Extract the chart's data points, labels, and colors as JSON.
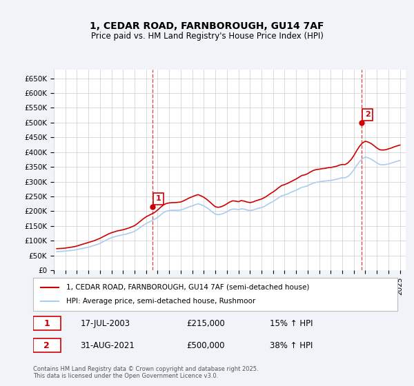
{
  "title_line1": "1, CEDAR ROAD, FARNBOROUGH, GU14 7AF",
  "title_line2": "Price paid vs. HM Land Registry's House Price Index (HPI)",
  "ylabel_ticks": [
    "£0",
    "£50K",
    "£100K",
    "£150K",
    "£200K",
    "£250K",
    "£300K",
    "£350K",
    "£400K",
    "£450K",
    "£500K",
    "£550K",
    "£600K",
    "£650K"
  ],
  "ytick_values": [
    0,
    50000,
    100000,
    150000,
    200000,
    250000,
    300000,
    350000,
    400000,
    450000,
    500000,
    550000,
    600000,
    650000
  ],
  "ylim": [
    0,
    680000
  ],
  "xlim_start": 1995.0,
  "xlim_end": 2025.5,
  "sale1_date": "17-JUL-2003",
  "sale1_price": 215000,
  "sale1_label": "15% ↑ HPI",
  "sale1_x": 2003.54,
  "sale2_date": "31-AUG-2021",
  "sale2_price": 500000,
  "sale2_label": "38% ↑ HPI",
  "sale2_x": 2021.66,
  "line_color_red": "#cc0000",
  "line_color_blue": "#aaccee",
  "vline_color": "#cc0000",
  "annotation_box_color": "#cc0000",
  "background_color": "#f0f4f8",
  "plot_bg_color": "#ffffff",
  "grid_color": "#cccccc",
  "legend_label_red": "1, CEDAR ROAD, FARNBOROUGH, GU14 7AF (semi-detached house)",
  "legend_label_blue": "HPI: Average price, semi-detached house, Rushmoor",
  "footnote": "Contains HM Land Registry data © Crown copyright and database right 2025.\nThis data is licensed under the Open Government Licence v3.0.",
  "hpi_data": {
    "years": [
      1995.25,
      1995.5,
      1995.75,
      1996.0,
      1996.25,
      1996.5,
      1996.75,
      1997.0,
      1997.25,
      1997.5,
      1997.75,
      1998.0,
      1998.25,
      1998.5,
      1998.75,
      1999.0,
      1999.25,
      1999.5,
      1999.75,
      2000.0,
      2000.25,
      2000.5,
      2000.75,
      2001.0,
      2001.25,
      2001.5,
      2001.75,
      2002.0,
      2002.25,
      2002.5,
      2002.75,
      2003.0,
      2003.25,
      2003.5,
      2003.75,
      2004.0,
      2004.25,
      2004.5,
      2004.75,
      2005.0,
      2005.25,
      2005.5,
      2005.75,
      2006.0,
      2006.25,
      2006.5,
      2006.75,
      2007.0,
      2007.25,
      2007.5,
      2007.75,
      2008.0,
      2008.25,
      2008.5,
      2008.75,
      2009.0,
      2009.25,
      2009.5,
      2009.75,
      2010.0,
      2010.25,
      2010.5,
      2010.75,
      2011.0,
      2011.25,
      2011.5,
      2011.75,
      2012.0,
      2012.25,
      2012.5,
      2012.75,
      2013.0,
      2013.25,
      2013.5,
      2013.75,
      2014.0,
      2014.25,
      2014.5,
      2014.75,
      2015.0,
      2015.25,
      2015.5,
      2015.75,
      2016.0,
      2016.25,
      2016.5,
      2016.75,
      2017.0,
      2017.25,
      2017.5,
      2017.75,
      2018.0,
      2018.25,
      2018.5,
      2018.75,
      2019.0,
      2019.25,
      2019.5,
      2019.75,
      2020.0,
      2020.25,
      2020.5,
      2020.75,
      2021.0,
      2021.25,
      2021.5,
      2021.75,
      2022.0,
      2022.25,
      2022.5,
      2022.75,
      2023.0,
      2023.25,
      2023.5,
      2023.75,
      2024.0,
      2024.25,
      2024.5,
      2024.75,
      2025.0
    ],
    "hpi_values": [
      63000,
      63500,
      64000,
      65000,
      66000,
      67000,
      68000,
      70000,
      72000,
      74000,
      76000,
      78000,
      81000,
      84000,
      87000,
      91000,
      96000,
      101000,
      106000,
      110000,
      113000,
      116000,
      118000,
      120000,
      122000,
      125000,
      128000,
      132000,
      138000,
      145000,
      152000,
      158000,
      163000,
      168000,
      173000,
      179000,
      187000,
      195000,
      200000,
      202000,
      203000,
      203000,
      203000,
      204000,
      207000,
      211000,
      215000,
      218000,
      222000,
      225000,
      222000,
      218000,
      212000,
      205000,
      197000,
      190000,
      188000,
      190000,
      193000,
      198000,
      204000,
      207000,
      207000,
      205000,
      208000,
      207000,
      204000,
      202000,
      204000,
      207000,
      210000,
      212000,
      216000,
      222000,
      228000,
      233000,
      239000,
      246000,
      252000,
      255000,
      258000,
      263000,
      267000,
      271000,
      276000,
      281000,
      283000,
      286000,
      291000,
      295000,
      298000,
      299000,
      301000,
      302000,
      303000,
      304000,
      306000,
      308000,
      311000,
      313000,
      313000,
      318000,
      327000,
      340000,
      355000,
      368000,
      378000,
      383000,
      381000,
      376000,
      370000,
      363000,
      358000,
      357000,
      358000,
      360000,
      363000,
      366000,
      369000,
      372000
    ],
    "red_values": [
      73000,
      73500,
      74000,
      75000,
      76500,
      78000,
      79500,
      82000,
      85000,
      88000,
      91000,
      94000,
      97000,
      100000,
      104000,
      108000,
      113000,
      118000,
      123000,
      127000,
      130000,
      133000,
      135000,
      137000,
      140000,
      143000,
      147000,
      151000,
      158000,
      166000,
      174000,
      181000,
      186000,
      191000,
      196000,
      204000,
      213000,
      221000,
      226000,
      228000,
      229000,
      229000,
      230000,
      231000,
      235000,
      240000,
      245000,
      249000,
      253000,
      256000,
      252000,
      247000,
      240000,
      232000,
      223000,
      215000,
      213000,
      215000,
      219000,
      225000,
      231000,
      235000,
      234000,
      232000,
      236000,
      234000,
      231000,
      229000,
      231000,
      235000,
      238000,
      241000,
      246000,
      252000,
      259000,
      265000,
      272000,
      280000,
      287000,
      290000,
      294000,
      299000,
      304000,
      309000,
      315000,
      321000,
      323000,
      327000,
      333000,
      338000,
      341000,
      342000,
      344000,
      345000,
      347000,
      348000,
      350000,
      352000,
      356000,
      358000,
      358000,
      364000,
      374000,
      388000,
      405000,
      420000,
      431000,
      437000,
      434000,
      429000,
      422000,
      414000,
      408000,
      407000,
      408000,
      411000,
      414000,
      418000,
      421000,
      424000
    ]
  }
}
